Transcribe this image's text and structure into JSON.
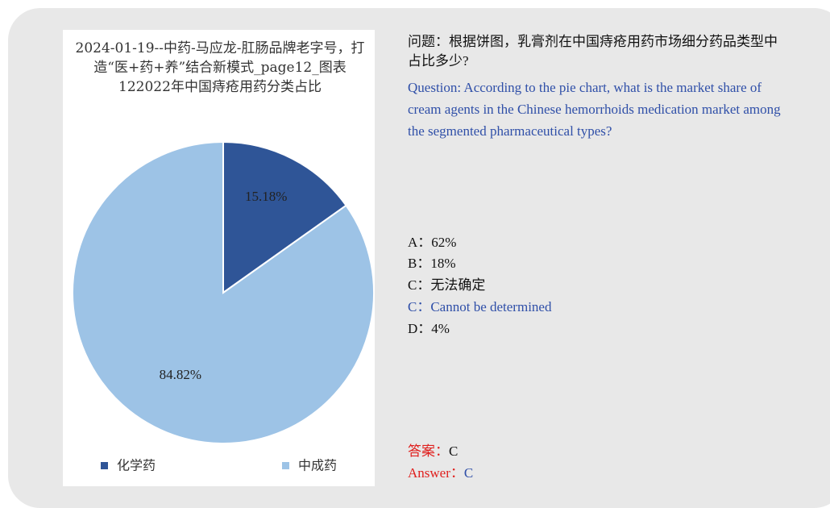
{
  "chart_data": {
    "type": "pie",
    "title": "2024-01-19--中药-马应龙-肛肠品牌老字号，打造“医+药+养”结合新模式_page12_图表122022年中国痔疮用药分类占比",
    "categories": [
      "化学药",
      "中成药"
    ],
    "values": [
      15.18,
      84.82
    ],
    "value_labels": [
      "15.18%",
      "84.82%"
    ],
    "colors": [
      "#2f5597",
      "#9dc3e6"
    ],
    "legend": "bottom"
  },
  "question": {
    "zh": "问题：根据饼图，乳膏剂在中国痔疮用药市场细分药品类型中占比多少?",
    "en": "Question: According to the pie chart, what is the market share of cream agents in the Chinese hemorrhoids medication market among the segmented pharmaceutical types?"
  },
  "options": [
    "A：62%",
    "B：18%",
    "C：无法确定",
    "C：Cannot be determined",
    "D：4%"
  ],
  "answer": {
    "zh_label": "答案：",
    "zh_value": "C",
    "en_label": "Answer：",
    "en_value": "C"
  }
}
